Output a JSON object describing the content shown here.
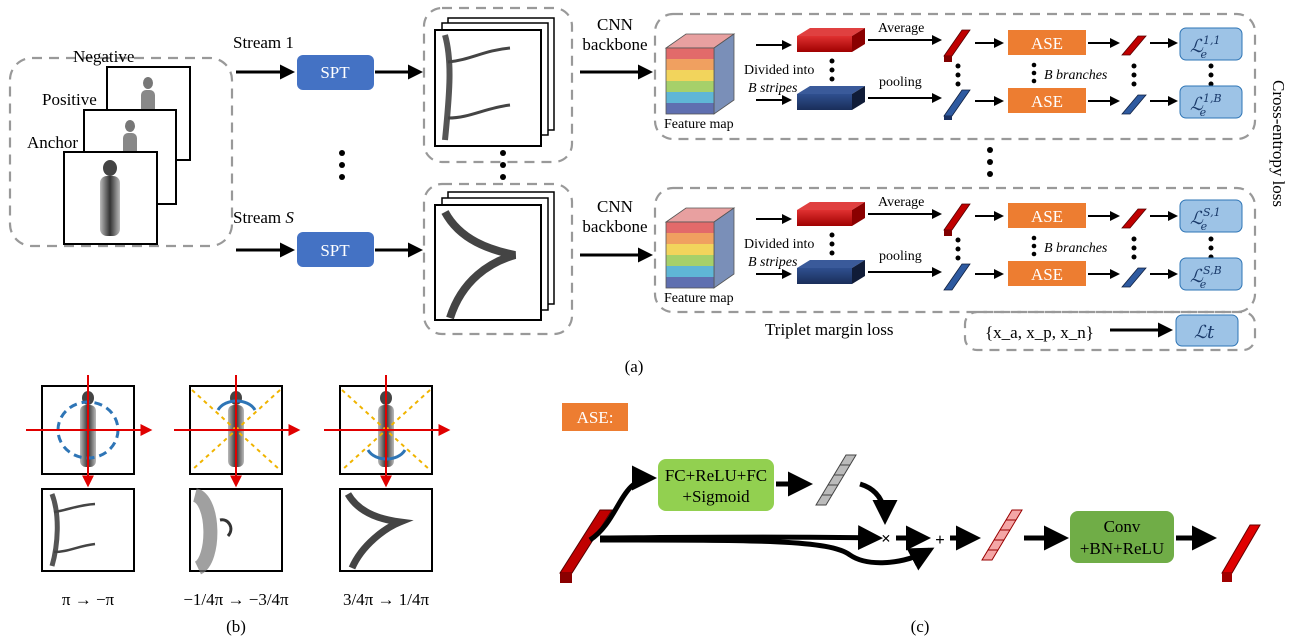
{
  "panel_a": {
    "triplet_labels": [
      "Negative",
      "Positive",
      "Anchor"
    ],
    "streams": [
      {
        "label_prefix": "Stream ",
        "label_var": "1",
        "spt": "SPT",
        "cnn": [
          "CNN",
          "backbone"
        ]
      },
      {
        "label_prefix": "Stream ",
        "label_var": "S",
        "spt": "SPT",
        "cnn": [
          "CNN",
          "backbone"
        ]
      }
    ],
    "feature_map_label": "Feature map",
    "divided_label": [
      "Divided into",
      "B stripes"
    ],
    "pooling_label": [
      "Average",
      "pooling"
    ],
    "ase_label": "ASE",
    "branches_label": "B branches",
    "loss_symbol": "ℒ",
    "loss_sub": "e",
    "losses_top": [
      "1,1",
      "1,B"
    ],
    "losses_bottom": [
      "S,1",
      "S,B"
    ],
    "cross_entropy_label": "Cross-entropy loss",
    "triplet_margin_label": "Triplet margin loss",
    "triplet_set": "{x_a, x_p, x_n}",
    "triplet_loss": "ℒt",
    "caption": "(a)"
  },
  "panel_b": {
    "ranges": [
      "π → −π",
      "−1/4π → −3/4π",
      "3/4π → 1/4π"
    ],
    "caption": "(b)"
  },
  "panel_c": {
    "ase_tag": "ASE:",
    "fc_block": [
      "FC+ReLU+FC",
      "+Sigmoid"
    ],
    "conv_block": [
      "Conv",
      "+BN+ReLU"
    ],
    "multiply": "×",
    "add": "+",
    "caption": "(c)"
  },
  "colors": {
    "spt_blue": "#4472c4",
    "ase_orange": "#ed7d31",
    "loss_blue": "#5b9bd5",
    "green": "#70ad47",
    "red_bar": "#c00000",
    "navy_bar": "#1f3864"
  }
}
